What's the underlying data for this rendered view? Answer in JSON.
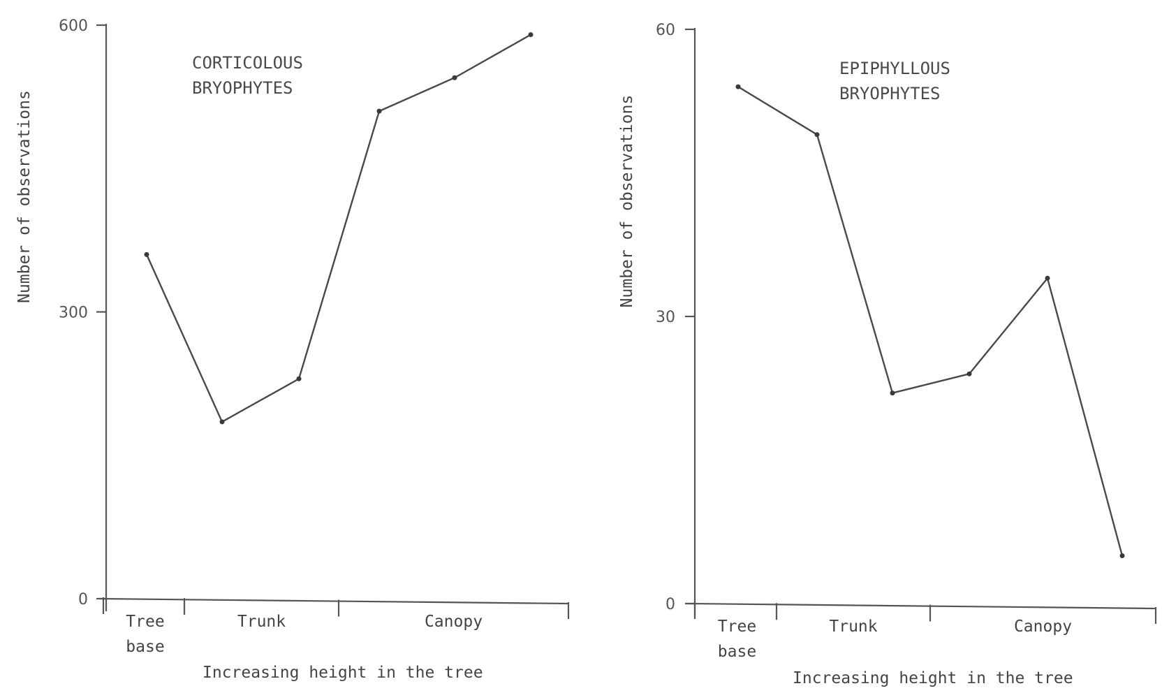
{
  "chart_data": [
    {
      "type": "line",
      "title": [
        "CORTICOLOUS",
        "BRYOPHYTES"
      ],
      "ylabel": "Number of observations",
      "xlabel": "Increasing height in the tree",
      "ylim": [
        0,
        600
      ],
      "yticks": [
        "0",
        "300",
        "600"
      ],
      "zones": [
        {
          "label": [
            "Tree",
            "base"
          ],
          "span": [
            0.5,
            1.5
          ]
        },
        {
          "label": [
            "Trunk"
          ],
          "span": [
            1.5,
            3.5
          ]
        },
        {
          "label": [
            "Canopy"
          ],
          "span": [
            3.5,
            6.0
          ]
        }
      ],
      "x": [
        1,
        2,
        3,
        4,
        5,
        6
      ],
      "values": [
        360,
        185,
        230,
        510,
        545,
        590
      ]
    },
    {
      "type": "line",
      "title": [
        "EPIPHYLLOUS",
        "BRYOPHYTES"
      ],
      "ylabel": "Number of observations",
      "xlabel": "Increasing height in the tree",
      "ylim": [
        0,
        60
      ],
      "yticks": [
        "0",
        "30",
        "60"
      ],
      "zones": [
        {
          "label": [
            "Tree",
            "base"
          ],
          "span": [
            0.5,
            1.5
          ]
        },
        {
          "label": [
            "Trunk"
          ],
          "span": [
            1.5,
            3.5
          ]
        },
        {
          "label": [
            "Canopy"
          ],
          "span": [
            3.5,
            6.5
          ]
        }
      ],
      "x": [
        1,
        2,
        3,
        4,
        5,
        6
      ],
      "values": [
        54,
        49,
        22,
        24,
        34,
        5
      ]
    }
  ]
}
